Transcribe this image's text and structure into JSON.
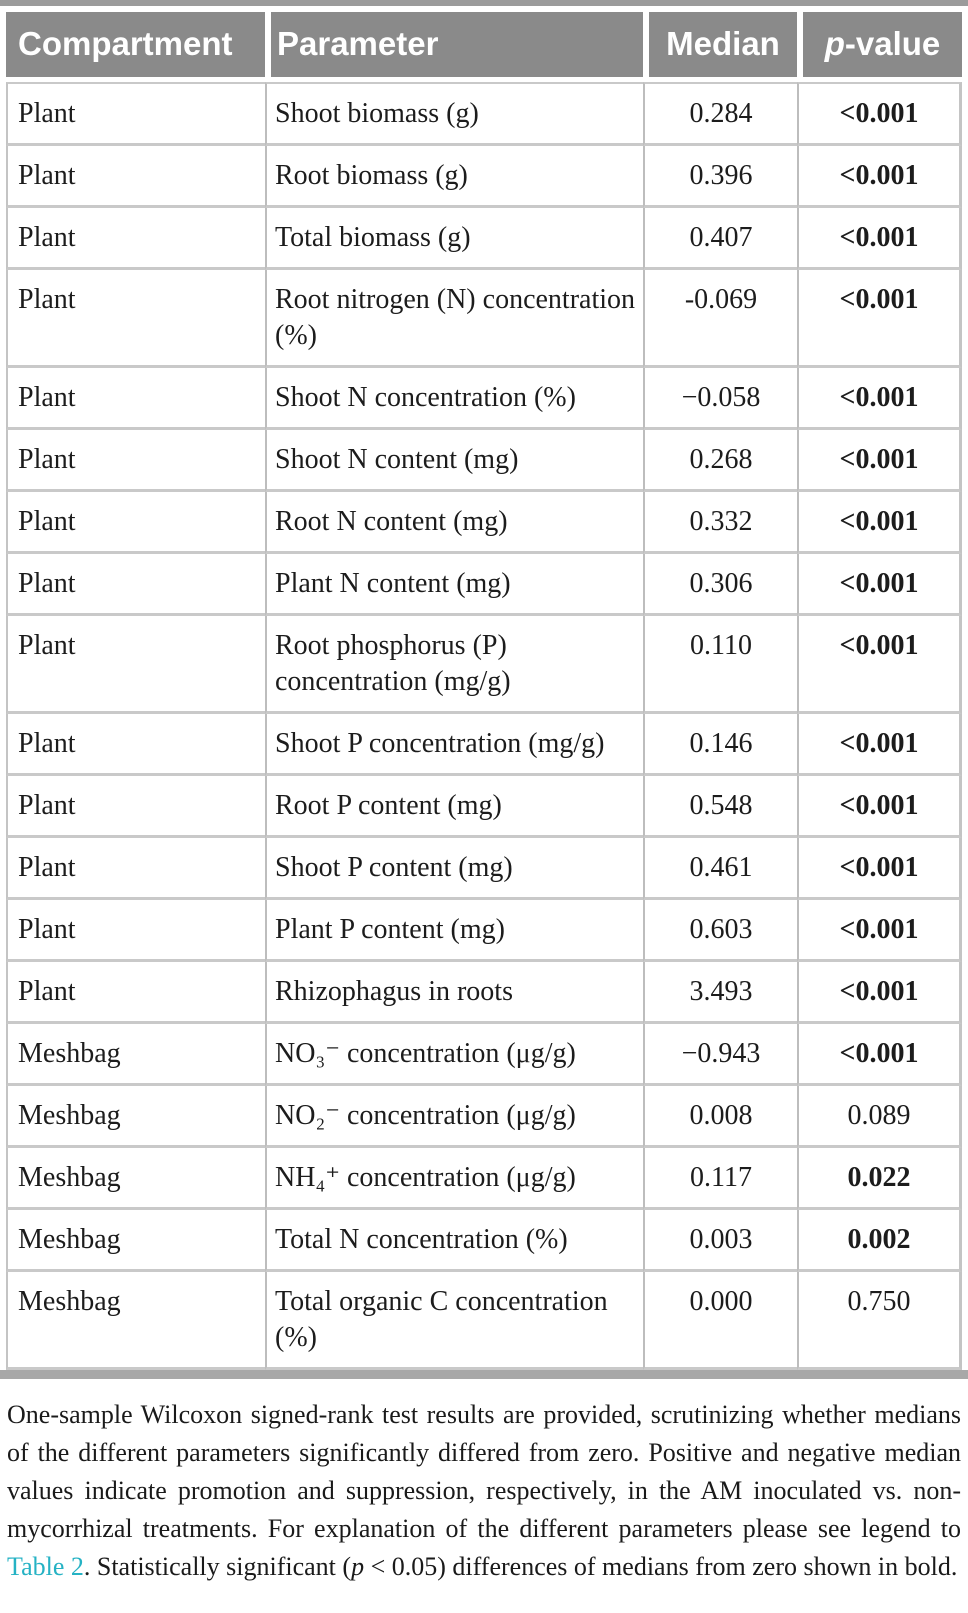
{
  "table": {
    "columns": [
      "Compartment",
      "Parameter",
      "Median"
    ],
    "p_header": {
      "italic": "p",
      "rest": "-value"
    },
    "rows": [
      {
        "compartment": "Plant",
        "parameter": "Shoot biomass (g)",
        "median": "0.284",
        "p_value": "<0.001",
        "significant": true
      },
      {
        "compartment": "Plant",
        "parameter": "Root biomass (g)",
        "median": "0.396",
        "p_value": "<0.001",
        "significant": true
      },
      {
        "compartment": "Plant",
        "parameter": "Total biomass (g)",
        "median": "0.407",
        "p_value": "<0.001",
        "significant": true
      },
      {
        "compartment": "Plant",
        "parameter": "Root nitrogen (N) concentration (%)",
        "median": "-0.069",
        "p_value": "<0.001",
        "significant": true
      },
      {
        "compartment": "Plant",
        "parameter": "Shoot N concentration (%)",
        "median": "−0.058",
        "p_value": "<0.001",
        "significant": true
      },
      {
        "compartment": "Plant",
        "parameter": "Shoot N content (mg)",
        "median": "0.268",
        "p_value": "<0.001",
        "significant": true
      },
      {
        "compartment": "Plant",
        "parameter": "Root N content (mg)",
        "median": "0.332",
        "p_value": "<0.001",
        "significant": true
      },
      {
        "compartment": "Plant",
        "parameter": "Plant N content (mg)",
        "median": "0.306",
        "p_value": "<0.001",
        "significant": true
      },
      {
        "compartment": "Plant",
        "parameter": "Root phosphorus (P) concentration (mg/g)",
        "median": "0.110",
        "p_value": "<0.001",
        "significant": true
      },
      {
        "compartment": "Plant",
        "parameter": "Shoot P concentration (mg/g)",
        "median": "0.146",
        "p_value": "<0.001",
        "significant": true
      },
      {
        "compartment": "Plant",
        "parameter": "Root P content (mg)",
        "median": "0.548",
        "p_value": "<0.001",
        "significant": true
      },
      {
        "compartment": "Plant",
        "parameter": "Shoot P content (mg)",
        "median": "0.461",
        "p_value": "<0.001",
        "significant": true
      },
      {
        "compartment": "Plant",
        "parameter": "Plant P content (mg)",
        "median": "0.603",
        "p_value": "<0.001",
        "significant": true
      },
      {
        "compartment": "Plant",
        "parameter": "Rhizophagus in roots",
        "median": "3.493",
        "p_value": "<0.001",
        "significant": true
      },
      {
        "compartment": "Meshbag",
        "parameter": "NO₃⁻ concentration (μg/g)",
        "median": "−0.943",
        "p_value": "<0.001",
        "significant": true
      },
      {
        "compartment": "Meshbag",
        "parameter": "NO₂⁻ concentration (μg/g)",
        "median": "0.008",
        "p_value": "0.089",
        "significant": false
      },
      {
        "compartment": "Meshbag",
        "parameter": "NH₄⁺ concentration (μg/g)",
        "median": "0.117",
        "p_value": "0.022",
        "significant": true
      },
      {
        "compartment": "Meshbag",
        "parameter": "Total N concentration (%)",
        "median": "0.003",
        "p_value": "0.002",
        "significant": true
      },
      {
        "compartment": "Meshbag",
        "parameter": "Total organic C concentration (%)",
        "median": "0.000",
        "p_value": "0.750",
        "significant": false
      }
    ]
  },
  "footnote": {
    "part1": "One-sample Wilcoxon signed-rank test results are provided, scrutinizing whether medians of the different parameters significantly differed from zero. Positive and negative median values indicate promotion and suppression, respectively, in the AM inoculated vs. non-mycorrhizal treatments. For explanation of the different parameters please see legend to ",
    "link": "Table 2",
    "part2": ". Statistically significant (",
    "p_italic": "p",
    "part3": " < 0.05) differences of medians from zero shown in bold."
  },
  "colors": {
    "header_background": "#8a8a8a",
    "header_text": "#ffffff",
    "link": "#25b2c4",
    "top_rule": "#9b9b9b",
    "bottom_rule": "#a8a8a8",
    "grid_line": "#c9c9c9"
  }
}
